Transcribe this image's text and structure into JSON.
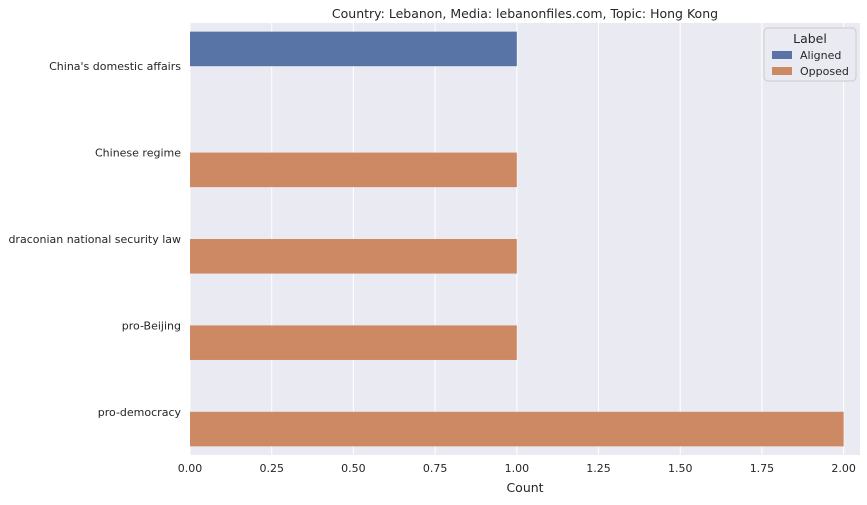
{
  "chart_data": {
    "type": "bar",
    "orientation": "horizontal",
    "title": "Country: Lebanon, Media: lebanonfiles.com, Topic: Hong Kong",
    "xlabel": "Count",
    "ylabel": "",
    "xlim": [
      0,
      2.05
    ],
    "x_ticks": [
      "0.00",
      "0.25",
      "0.50",
      "0.75",
      "1.00",
      "1.25",
      "1.50",
      "1.75",
      "2.00"
    ],
    "x_tick_values": [
      0,
      0.25,
      0.5,
      0.75,
      1.0,
      1.25,
      1.5,
      1.75,
      2.0
    ],
    "categories": [
      "China's domestic affairs",
      "Chinese regime",
      "draconian national security law",
      "pro-Beijing",
      "pro-democracy"
    ],
    "series": [
      {
        "name": "Aligned",
        "color": "#5874a6",
        "values": [
          1,
          null,
          null,
          null,
          null
        ]
      },
      {
        "name": "Opposed",
        "color": "#cd8963",
        "values": [
          null,
          1,
          1,
          1,
          2
        ]
      }
    ],
    "legend": {
      "title": "Label",
      "placement": "top-right"
    },
    "grid": true,
    "background_color": "#eaeaf2",
    "grid_color": "#ffffff"
  }
}
